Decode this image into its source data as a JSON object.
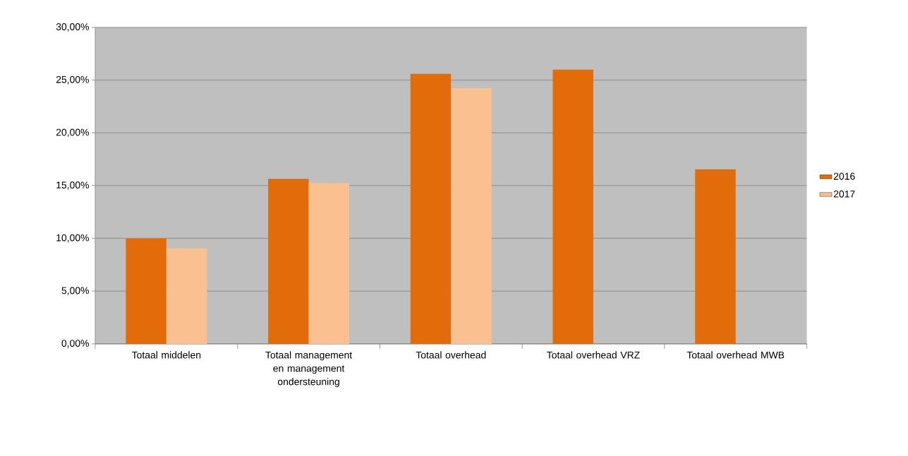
{
  "chart_data": {
    "type": "bar",
    "categories": [
      "Totaal middelen",
      "Totaal management en management ondersteuning",
      "Totaal overhead",
      "Totaal overhead VRZ",
      "Totaal overhead MWB"
    ],
    "series": [
      {
        "name": "2016",
        "color": "#e36c0a",
        "values": [
          10.0,
          15.65,
          25.6,
          26.0,
          16.55
        ]
      },
      {
        "name": "2017",
        "color": "#fac090",
        "values": [
          9.05,
          15.25,
          24.25,
          null,
          null
        ]
      }
    ],
    "ylim": [
      0,
      30
    ],
    "yticks": [
      {
        "value": 0,
        "label": "0,00%"
      },
      {
        "value": 5,
        "label": "5,00%"
      },
      {
        "value": 10,
        "label": "10,00%"
      },
      {
        "value": 15,
        "label": "15,00%"
      },
      {
        "value": 20,
        "label": "20,00%"
      },
      {
        "value": 25,
        "label": "25,00%"
      },
      {
        "value": 30,
        "label": "30,00%"
      }
    ],
    "grid": "y",
    "legend": "right"
  }
}
